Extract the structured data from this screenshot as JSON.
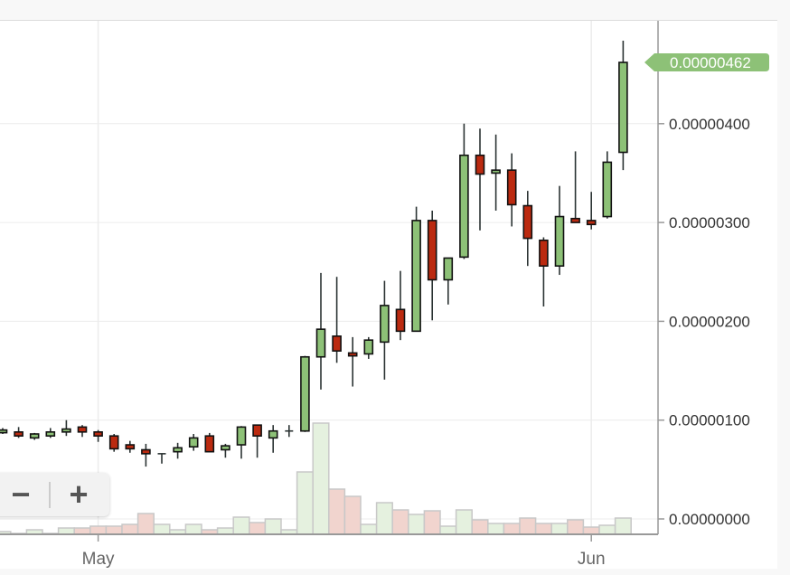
{
  "chart_data": {
    "type": "candlestick",
    "title": "",
    "xlabel": "",
    "ylabel": "",
    "ylim": [
      0,
      5e-06
    ],
    "y_unit_scale": 1e-08,
    "y_ticks": [
      "0.00000000",
      "0.00000100",
      "0.00000200",
      "0.00000300",
      "0.00000400"
    ],
    "y_tick_values": [
      0,
      100,
      200,
      300,
      400
    ],
    "x_ticks": [
      {
        "label": "May",
        "index": 6
      },
      {
        "label": "Jun",
        "index": 37
      }
    ],
    "last_price_label": "0.00000462",
    "grid": true,
    "candles": [
      {
        "o": 88,
        "h": 92,
        "l": 86,
        "c": 90
      },
      {
        "o": 88,
        "h": 93,
        "l": 82,
        "c": 84
      },
      {
        "o": 82,
        "h": 87,
        "l": 80,
        "c": 86
      },
      {
        "o": 84,
        "h": 92,
        "l": 82,
        "c": 88
      },
      {
        "o": 88,
        "h": 100,
        "l": 84,
        "c": 91
      },
      {
        "o": 93,
        "h": 95,
        "l": 83,
        "c": 88
      },
      {
        "o": 88,
        "h": 90,
        "l": 78,
        "c": 84
      },
      {
        "o": 84,
        "h": 86,
        "l": 68,
        "c": 71
      },
      {
        "o": 75,
        "h": 79,
        "l": 67,
        "c": 71
      },
      {
        "o": 70,
        "h": 76,
        "l": 53,
        "c": 66
      },
      {
        "o": 66,
        "h": 66,
        "l": 56,
        "c": 66
      },
      {
        "o": 68,
        "h": 77,
        "l": 61,
        "c": 72
      },
      {
        "o": 73,
        "h": 86,
        "l": 69,
        "c": 82
      },
      {
        "o": 84,
        "h": 87,
        "l": 68,
        "c": 68
      },
      {
        "o": 70,
        "h": 76,
        "l": 62,
        "c": 74
      },
      {
        "o": 75,
        "h": 94,
        "l": 61,
        "c": 93
      },
      {
        "o": 95,
        "h": 95,
        "l": 62,
        "c": 84
      },
      {
        "o": 82,
        "h": 95,
        "l": 67,
        "c": 89
      },
      {
        "o": 89,
        "h": 95,
        "l": 83,
        "c": 89
      },
      {
        "o": 89,
        "h": 165,
        "l": 88,
        "c": 164
      },
      {
        "o": 164,
        "h": 249,
        "l": 131,
        "c": 192
      },
      {
        "o": 185,
        "h": 245,
        "l": 158,
        "c": 170
      },
      {
        "o": 168,
        "h": 184,
        "l": 134,
        "c": 165
      },
      {
        "o": 167,
        "h": 184,
        "l": 162,
        "c": 181
      },
      {
        "o": 179,
        "h": 241,
        "l": 141,
        "c": 216
      },
      {
        "o": 212,
        "h": 251,
        "l": 181,
        "c": 190
      },
      {
        "o": 190,
        "h": 316,
        "l": 190,
        "c": 302
      },
      {
        "o": 302,
        "h": 312,
        "l": 201,
        "c": 242
      },
      {
        "o": 242,
        "h": 264,
        "l": 217,
        "c": 264
      },
      {
        "o": 265,
        "h": 400,
        "l": 263,
        "c": 368
      },
      {
        "o": 368,
        "h": 395,
        "l": 292,
        "c": 349
      },
      {
        "o": 350,
        "h": 389,
        "l": 312,
        "c": 353
      },
      {
        "o": 353,
        "h": 370,
        "l": 296,
        "c": 318
      },
      {
        "o": 317,
        "h": 332,
        "l": 256,
        "c": 284
      },
      {
        "o": 282,
        "h": 285,
        "l": 215,
        "c": 256
      },
      {
        "o": 256,
        "h": 337,
        "l": 247,
        "c": 306
      },
      {
        "o": 304,
        "h": 372,
        "l": 300,
        "c": 300
      },
      {
        "o": 302,
        "h": 331,
        "l": 293,
        "c": 298
      },
      {
        "o": 306,
        "h": 372,
        "l": 304,
        "c": 361
      },
      {
        "o": 371,
        "h": 484,
        "l": 353,
        "c": 462
      }
    ],
    "volume_relative": [
      3,
      1,
      5,
      1,
      7,
      7,
      9,
      9,
      11,
      23,
      11,
      5,
      11,
      5,
      7,
      19,
      13,
      17,
      5,
      69,
      123,
      50,
      42,
      11,
      35,
      27,
      22,
      26,
      9,
      27,
      16,
      12,
      12,
      18,
      12,
      12,
      16,
      8,
      10,
      18
    ],
    "colors": {
      "up": "#8dc177",
      "down": "#bb2a10",
      "vol_up": "#e5f1df",
      "vol_down": "#f1d4ce",
      "label_bg": "#8dc177"
    }
  },
  "zoom_controls": {
    "minus": "−",
    "plus": "+"
  }
}
